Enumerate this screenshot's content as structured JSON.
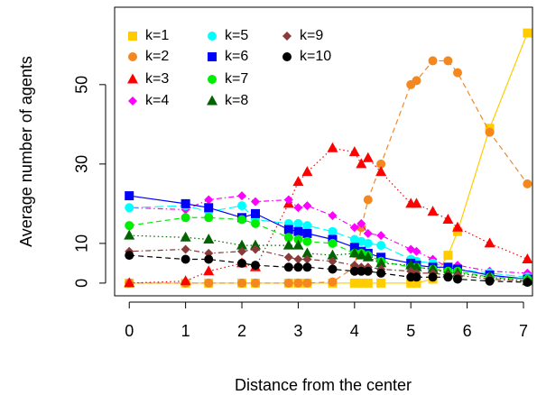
{
  "chart_data": {
    "type": "line",
    "xlabel": "Distance from the center",
    "ylabel": "Average number of agents",
    "x": [
      0,
      1,
      1.41,
      2,
      2.24,
      2.83,
      3,
      3.16,
      3.61,
      4,
      4.12,
      4.24,
      4.47,
      5,
      5.1,
      5.39,
      5.66,
      5.83,
      6.4,
      7.07
    ],
    "xlim": [
      -0.26,
      7.16
    ],
    "xticks": [
      0,
      1,
      2,
      3,
      4,
      5,
      6,
      7
    ],
    "ylim": [
      -3.2,
      69.5
    ],
    "yticks": [
      0,
      10,
      30,
      50
    ],
    "legend": "top-left",
    "series": [
      {
        "name": "k=1",
        "color": "#ffcc00",
        "marker": "square",
        "line_style": "solid",
        "values": [
          0,
          0,
          0,
          0,
          0,
          0,
          0,
          0,
          0,
          0,
          0,
          0,
          0,
          0,
          0,
          1,
          7,
          13,
          39,
          63
        ]
      },
      {
        "name": "k=2",
        "color": "#f5871f",
        "marker": "circle",
        "line_style": "dashed",
        "values": [
          0,
          0,
          0,
          0,
          0,
          0,
          0,
          0,
          0.3,
          4,
          14,
          21,
          30,
          50,
          51,
          56,
          56,
          53,
          38,
          25
        ]
      },
      {
        "name": "k=3",
        "color": "#ff0000",
        "marker": "triangle",
        "line_style": "dotted",
        "values": [
          0,
          0.5,
          3,
          5,
          4,
          20,
          25.5,
          28,
          34,
          33,
          30,
          31.5,
          28,
          20,
          20,
          18,
          16,
          14,
          10,
          6
        ]
      },
      {
        "name": "k=4",
        "color": "#ff00ff",
        "marker": "diamond",
        "line_style": "dotdash",
        "values": [
          19,
          18.5,
          21,
          22,
          20.5,
          21,
          19,
          19.5,
          17,
          14,
          15,
          12.5,
          12,
          8.5,
          8,
          6,
          4,
          4.5,
          3,
          2.5
        ]
      },
      {
        "name": "k=5",
        "color": "#00ffff",
        "marker": "circle",
        "line_style": "longdash",
        "values": [
          19,
          19.5,
          18,
          19.5,
          16,
          15,
          15,
          14.5,
          13,
          11,
          10.5,
          10,
          9.5,
          6,
          5.5,
          5,
          4,
          3.5,
          2.5,
          1.5
        ]
      },
      {
        "name": "k=6",
        "color": "#0000ff",
        "marker": "square",
        "line_style": "solid",
        "values": [
          22,
          20,
          19,
          16.5,
          17.5,
          13.5,
          13,
          12.5,
          11,
          9,
          8,
          7.5,
          6.5,
          5,
          4.5,
          4,
          4,
          3.5,
          2,
          1
        ]
      },
      {
        "name": "k=7",
        "color": "#00ee00",
        "marker": "circle",
        "line_style": "dashed",
        "values": [
          14.5,
          16.5,
          16.5,
          16,
          15,
          11.5,
          11,
          10.5,
          10,
          7.5,
          7.5,
          7,
          5.5,
          4,
          4,
          3.5,
          3,
          3,
          1.5,
          1
        ]
      },
      {
        "name": "k=8",
        "color": "#006400",
        "marker": "triangle",
        "line_style": "dotted",
        "values": [
          12,
          11.5,
          11,
          9.5,
          9.5,
          9.5,
          9.5,
          7.5,
          7,
          7.5,
          7,
          6.5,
          5,
          4.5,
          4,
          3.5,
          2.5,
          2.5,
          1.5,
          0.5
        ]
      },
      {
        "name": "k=9",
        "color": "#8b3a3a",
        "marker": "diamond",
        "line_style": "dotdash",
        "values": [
          8,
          8.5,
          7.5,
          8,
          8.5,
          6.5,
          6,
          6,
          5.5,
          4.5,
          4,
          4,
          3.5,
          3,
          2.5,
          2.5,
          2,
          2,
          1,
          0.5
        ]
      },
      {
        "name": "k=10",
        "color": "#000000",
        "marker": "circle",
        "line_style": "dashed",
        "values": [
          7,
          6,
          6,
          5,
          4.5,
          4,
          4,
          4,
          3.5,
          3,
          3,
          3,
          2.5,
          1.5,
          1.5,
          1.5,
          1.5,
          1,
          0.5,
          0.2
        ]
      }
    ]
  }
}
